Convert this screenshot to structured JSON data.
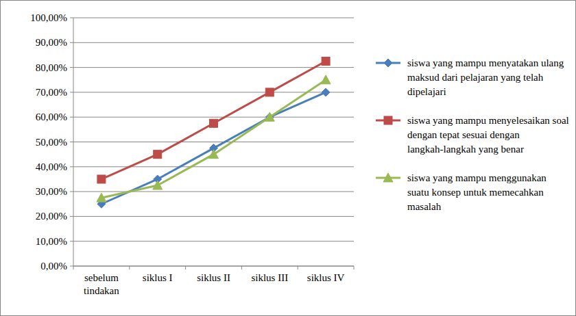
{
  "chart_data": {
    "type": "line",
    "categories": [
      "sebelum tindakan",
      "siklus I",
      "siklus II",
      "siklus III",
      "siklus IV"
    ],
    "series": [
      {
        "name": "siswa yang mampu menyatakan ulang maksud dari pelajaran yang telah dipelajari",
        "color": "#4a7ebb",
        "marker": "diamond",
        "values": [
          25,
          35,
          47.5,
          60,
          70
        ]
      },
      {
        "name": "siswa yang mampu menyelesaikan soal dengan tepat sesuai dengan langkah-langkah yang benar",
        "color": "#be4b48",
        "marker": "square",
        "values": [
          35,
          45,
          57.5,
          70,
          82.5
        ]
      },
      {
        "name": "siswa yang mampu menggunakan suatu konsep untuk memecahkan masalah",
        "color": "#98b954",
        "marker": "triangle",
        "values": [
          27.5,
          32.5,
          45,
          60,
          75
        ]
      }
    ],
    "ylim": [
      0,
      100
    ],
    "yticks": [
      {
        "value": 0,
        "label": "0,00%"
      },
      {
        "value": 10,
        "label": "10,00%"
      },
      {
        "value": 20,
        "label": "20,00%"
      },
      {
        "value": 30,
        "label": "30,00%"
      },
      {
        "value": 40,
        "label": "40,00%"
      },
      {
        "value": 50,
        "label": "50,00%"
      },
      {
        "value": 60,
        "label": "60,00%"
      },
      {
        "value": 70,
        "label": "70,00%"
      },
      {
        "value": 80,
        "label": "80,00%"
      },
      {
        "value": 90,
        "label": "90,00%"
      },
      {
        "value": 100,
        "label": "100,00%"
      }
    ],
    "grid": true,
    "legend": "right"
  }
}
